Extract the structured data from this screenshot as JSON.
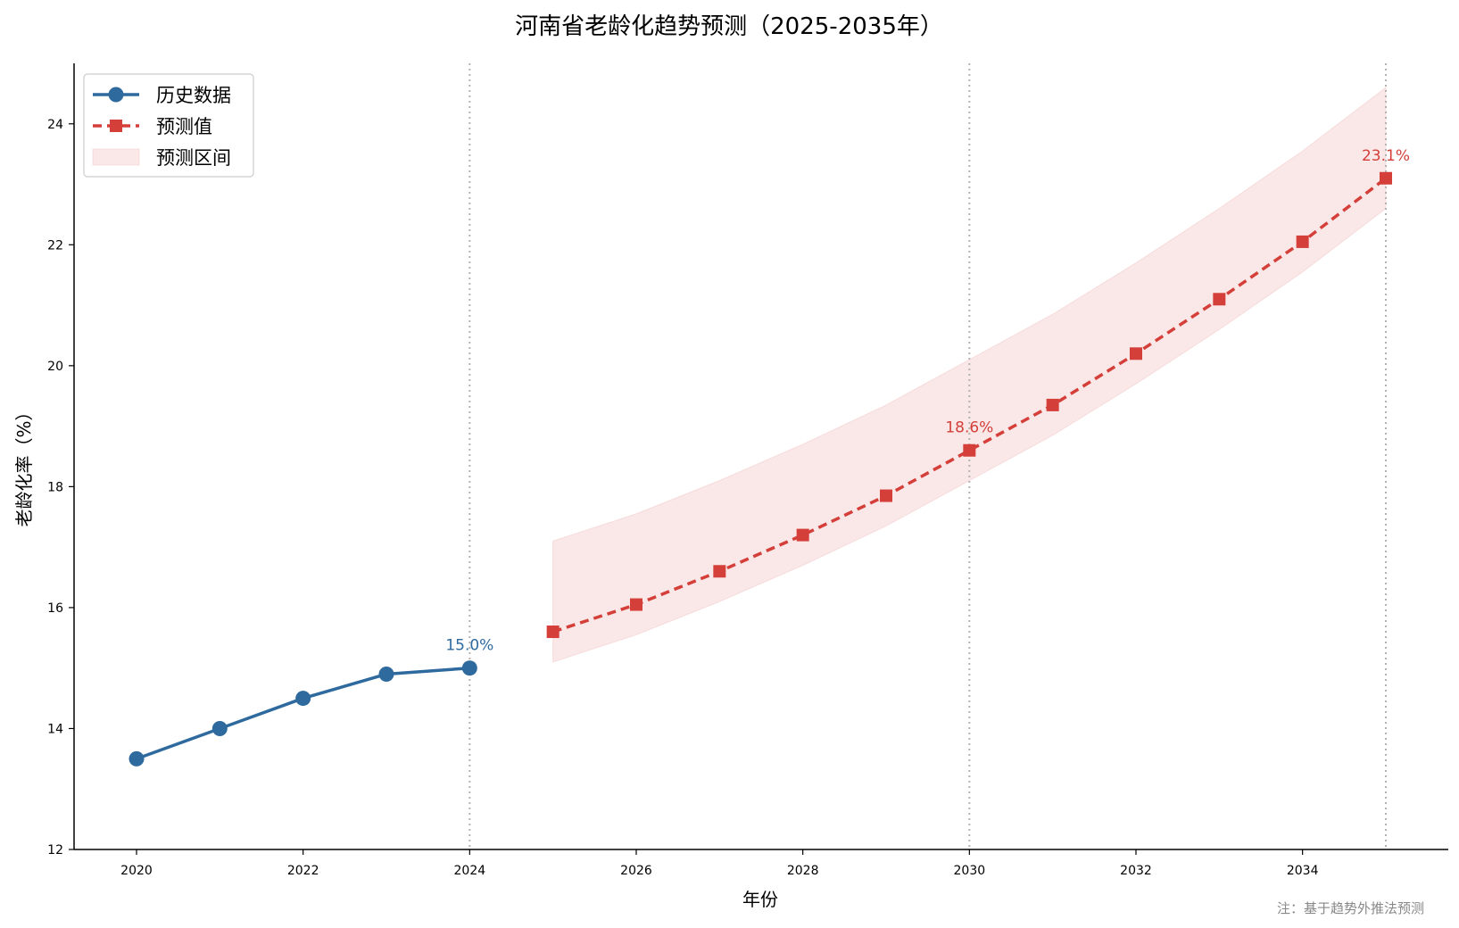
{
  "chart_data": {
    "type": "line",
    "title": "河南省老龄化趋势预测（2025-2035年）",
    "xlabel": "年份",
    "ylabel": "老龄化率（%）",
    "xlim": [
      2019.25,
      2035.75
    ],
    "ylim": [
      12,
      25
    ],
    "xticks": [
      2020,
      2022,
      2024,
      2026,
      2028,
      2030,
      2032,
      2034
    ],
    "yticks": [
      12,
      14,
      16,
      18,
      20,
      22,
      24
    ],
    "vlines": [
      2024,
      2030,
      2035
    ],
    "legend_position": "top-left",
    "series": [
      {
        "name": "历史数据",
        "style": "solid-circle",
        "color": "#2e6a9e",
        "x": [
          2020,
          2021,
          2022,
          2023,
          2024
        ],
        "y": [
          13.5,
          14.0,
          14.5,
          14.9,
          15.0
        ]
      },
      {
        "name": "预测值",
        "style": "dashed-square",
        "color": "#d43f3a",
        "x": [
          2025,
          2026,
          2027,
          2028,
          2029,
          2030,
          2031,
          2032,
          2033,
          2034,
          2035
        ],
        "y": [
          15.6,
          16.05,
          16.6,
          17.2,
          17.85,
          18.6,
          19.35,
          20.2,
          21.1,
          22.05,
          23.1
        ]
      }
    ],
    "band": {
      "name": "预测区间",
      "color": "#f4cccc",
      "x": [
        2025,
        2026,
        2027,
        2028,
        2029,
        2030,
        2031,
        2032,
        2033,
        2034,
        2035
      ],
      "lower": [
        15.1,
        15.55,
        16.1,
        16.7,
        17.35,
        18.1,
        18.85,
        19.7,
        20.6,
        21.55,
        22.6
      ],
      "upper": [
        17.1,
        17.55,
        18.1,
        18.7,
        19.35,
        20.1,
        20.85,
        21.7,
        22.6,
        23.55,
        24.6
      ]
    },
    "annotations": [
      {
        "x": 2024,
        "y": 15.0,
        "text": "15.0%",
        "color": "#2e6a9e"
      },
      {
        "x": 2030,
        "y": 18.6,
        "text": "18.6%",
        "color": "#d43f3a"
      },
      {
        "x": 2035,
        "y": 23.1,
        "text": "23.1%",
        "color": "#d43f3a"
      }
    ],
    "note": "注：基于趋势外推法预测"
  }
}
